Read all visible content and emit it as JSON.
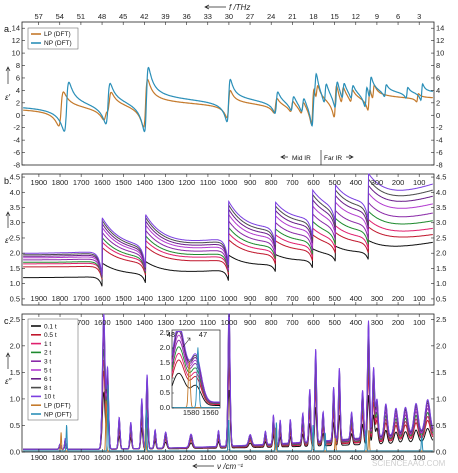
{
  "panels": {
    "a": {
      "label": "a.",
      "ylabel": "ε′",
      "yticks": [
        "14",
        "12",
        "10",
        "8",
        "6",
        "4",
        "2",
        "0",
        "-2",
        "-4",
        "-6",
        "-8"
      ]
    },
    "b": {
      "label": "b.",
      "ylabel": "ε′",
      "yticks": [
        "4.5",
        "4.0",
        "3.5",
        "3.0",
        "2.5",
        "2.0",
        "1.5",
        "1.0",
        "0.5"
      ]
    },
    "c": {
      "label": "c.",
      "ylabel": "ε″",
      "yticks": [
        "2.5",
        "2.0",
        "1.5",
        "1.0",
        "0.5",
        "0.0"
      ]
    }
  },
  "top_axis": {
    "label": "f /THz",
    "ticks": [
      "57",
      "54",
      "51",
      "48",
      "45",
      "42",
      "39",
      "36",
      "33",
      "30",
      "27",
      "24",
      "21",
      "18",
      "15",
      "12",
      "9",
      "6",
      "3"
    ]
  },
  "bottom_axis": {
    "label": "ν /cm⁻¹",
    "ticks": [
      "1900",
      "1800",
      "1700",
      "1600",
      "1500",
      "1400",
      "1300",
      "1200",
      "1100",
      "1000",
      "900",
      "800",
      "700",
      "600",
      "500",
      "400",
      "300",
      "200",
      "100"
    ]
  },
  "region_labels": {
    "mid": "Mid IR",
    "far": "Far IR"
  },
  "legend_a": [
    {
      "name": "LP (DFT)",
      "color": "#c47a2c"
    },
    {
      "name": "NP (DFT)",
      "color": "#2b8fb8"
    }
  ],
  "legend_c": [
    {
      "name": "0.1 t",
      "color": "#111111"
    },
    {
      "name": "0.5 t",
      "color": "#c0172c"
    },
    {
      "name": "1 t",
      "color": "#e0206e"
    },
    {
      "name": "2 t",
      "color": "#1e8a2e"
    },
    {
      "name": "3 t",
      "color": "#8a2aa8"
    },
    {
      "name": "5 t",
      "color": "#b23bd0"
    },
    {
      "name": "6 t",
      "color": "#6a1e8a"
    },
    {
      "name": "8 t",
      "color": "#4b4b4b"
    },
    {
      "name": "10 t",
      "color": "#7b3fe0"
    },
    {
      "name": "LP (DFT)",
      "color": "#c47a2c"
    },
    {
      "name": "NP (DFT)",
      "color": "#2b8fb8"
    }
  ],
  "inset": {
    "top_ticks": [
      "48",
      "47"
    ],
    "bottom_ticks": [
      "1580",
      "1560"
    ],
    "yticks": [
      "2.5",
      "2.0",
      "1.5",
      "1.0",
      "0.5",
      "0.0"
    ]
  },
  "watermark": "SCIENCEAAO.COM",
  "chart_data": [
    {
      "type": "line",
      "panel": "a",
      "x_unit": "cm-1",
      "xlim": [
        1980,
        30
      ],
      "ylim": [
        -8,
        15
      ],
      "series": [
        {
          "name": "LP (DFT)",
          "color": "#c47a2c",
          "baseline": 1.6,
          "resonances": [
            [
              1795,
              2.5
            ],
            [
              1585,
              0.9
            ],
            [
              1567,
              1.6
            ],
            [
              1395,
              3.5
            ],
            [
              1002,
              2.0
            ],
            [
              780,
              1.1
            ],
            [
              703,
              0.8
            ],
            [
              653,
              0.9
            ],
            [
              604,
              2.8
            ],
            [
              585,
              1.2
            ],
            [
              497,
              2.4
            ],
            [
              464,
              1.2
            ],
            [
              420,
              0.9
            ],
            [
              338,
              1.6
            ],
            [
              317,
              1.1
            ],
            [
              108,
              0.6
            ]
          ]
        },
        {
          "name": "NP (DFT)",
          "color": "#2b8fb8",
          "baseline": 2.2,
          "resonances": [
            [
              1769,
              3.6
            ],
            [
              1573,
              3.0
            ],
            [
              1391,
              4.7
            ],
            [
              1002,
              3.1
            ],
            [
              776,
              1.6
            ],
            [
              700,
              1.1
            ],
            [
              651,
              1.1
            ],
            [
              602,
              2.7
            ],
            [
              592,
              2.0
            ],
            [
              545,
              1.5
            ],
            [
              493,
              2.0
            ],
            [
              460,
              1.2
            ],
            [
              418,
              1.0
            ],
            [
              352,
              1.6
            ],
            [
              332,
              1.6
            ],
            [
              260,
              0.9
            ],
            [
              158,
              0.8
            ],
            [
              88,
              1.2
            ]
          ]
        }
      ]
    },
    {
      "type": "line",
      "panel": "b",
      "x_unit": "cm-1",
      "xlim": [
        1980,
        30
      ],
      "ylim": [
        0.3,
        4.6
      ],
      "series": [
        {
          "name": "0.1 t",
          "color": "#111111",
          "base_low": 1.2,
          "base_high": 2.35,
          "scale": 0.4
        },
        {
          "name": "0.5 t",
          "color": "#c0172c",
          "base_low": 1.55,
          "base_high": 2.6,
          "scale": 0.55
        },
        {
          "name": "1 t",
          "color": "#e0206e",
          "base_low": 1.65,
          "base_high": 2.8,
          "scale": 0.62
        },
        {
          "name": "2 t",
          "color": "#1e8a2e",
          "base_low": 1.7,
          "base_high": 3.05,
          "scale": 0.7
        },
        {
          "name": "3 t",
          "color": "#8a2aa8",
          "base_low": 1.78,
          "base_high": 3.3,
          "scale": 0.78
        },
        {
          "name": "5 t",
          "color": "#b23bd0",
          "base_low": 1.85,
          "base_high": 3.6,
          "scale": 0.86
        },
        {
          "name": "6 t",
          "color": "#6a1e8a",
          "base_low": 1.9,
          "base_high": 3.85,
          "scale": 0.92
        },
        {
          "name": "8 t",
          "color": "#4b4b4b",
          "base_low": 1.95,
          "base_high": 4.05,
          "scale": 0.97
        },
        {
          "name": "10 t",
          "color": "#7b3fe0",
          "base_low": 2.0,
          "base_high": 4.25,
          "scale": 1.0
        }
      ]
    },
    {
      "type": "line",
      "panel": "c",
      "x_unit": "cm-1",
      "xlim": [
        1980,
        30
      ],
      "ylim": [
        0,
        2.6
      ],
      "peaks": [
        [
          1800,
          0.1,
          6
        ],
        [
          1775,
          0.2,
          5
        ],
        [
          1593,
          2.55,
          9
        ],
        [
          1575,
          1.5,
          7
        ],
        [
          1520,
          0.6,
          6
        ],
        [
          1465,
          0.5,
          6
        ],
        [
          1413,
          0.95,
          6
        ],
        [
          1388,
          1.4,
          6
        ],
        [
          1350,
          0.35,
          6
        ],
        [
          1300,
          0.3,
          8
        ],
        [
          1180,
          0.25,
          10
        ],
        [
          1050,
          0.3,
          6
        ],
        [
          1000,
          2.6,
          7
        ],
        [
          900,
          0.2,
          10
        ],
        [
          828,
          0.25,
          6
        ],
        [
          790,
          0.55,
          5
        ],
        [
          758,
          0.45,
          5
        ],
        [
          710,
          0.45,
          5
        ],
        [
          651,
          0.55,
          6
        ],
        [
          618,
          1.0,
          6
        ],
        [
          590,
          1.75,
          6
        ],
        [
          555,
          0.55,
          6
        ],
        [
          505,
          1.0,
          6
        ],
        [
          478,
          1.35,
          6
        ],
        [
          420,
          0.5,
          7
        ],
        [
          368,
          0.9,
          7
        ],
        [
          340,
          2.2,
          7
        ],
        [
          316,
          1.3,
          7
        ],
        [
          300,
          0.7,
          8
        ],
        [
          258,
          0.6,
          10
        ],
        [
          210,
          0.5,
          12
        ],
        [
          165,
          0.5,
          14
        ],
        [
          115,
          0.55,
          14
        ],
        [
          60,
          0.6,
          16
        ]
      ],
      "series": [
        {
          "name": "0.1 t",
          "color": "#111111",
          "scale": 0.42
        },
        {
          "name": "0.5 t",
          "color": "#c0172c",
          "scale": 0.58
        },
        {
          "name": "1 t",
          "color": "#e0206e",
          "scale": 0.66
        },
        {
          "name": "2 t",
          "color": "#1e8a2e",
          "scale": 0.74
        },
        {
          "name": "3 t",
          "color": "#8a2aa8",
          "scale": 0.82
        },
        {
          "name": "5 t",
          "color": "#b23bd0",
          "scale": 0.88
        },
        {
          "name": "6 t",
          "color": "#6a1e8a",
          "scale": 0.93
        },
        {
          "name": "8 t",
          "color": "#4b4b4b",
          "scale": 0.97
        },
        {
          "name": "10 t",
          "color": "#7b3fe0",
          "scale": 1.0
        },
        {
          "name": "LP (DFT)",
          "color": "#c47a2c",
          "sticks": [
            [
              1795,
              0.35
            ],
            [
              1582,
              0.95
            ],
            [
              1395,
              0.45
            ],
            [
              1002,
              0.55
            ],
            [
              780,
              0.45
            ],
            [
              604,
              0.35
            ],
            [
              497,
              0.25
            ],
            [
              338,
              0.4
            ]
          ]
        },
        {
          "name": "NP (DFT)",
          "color": "#2b8fb8",
          "sticks": [
            [
              1769,
              0.5
            ],
            [
              1573,
              1.25
            ],
            [
              1391,
              0.8
            ],
            [
              1002,
              0.6
            ],
            [
              776,
              0.55
            ],
            [
              602,
              0.5
            ],
            [
              545,
              0.35
            ],
            [
              352,
              0.4
            ],
            [
              88,
              0.3
            ]
          ]
        }
      ]
    }
  ]
}
